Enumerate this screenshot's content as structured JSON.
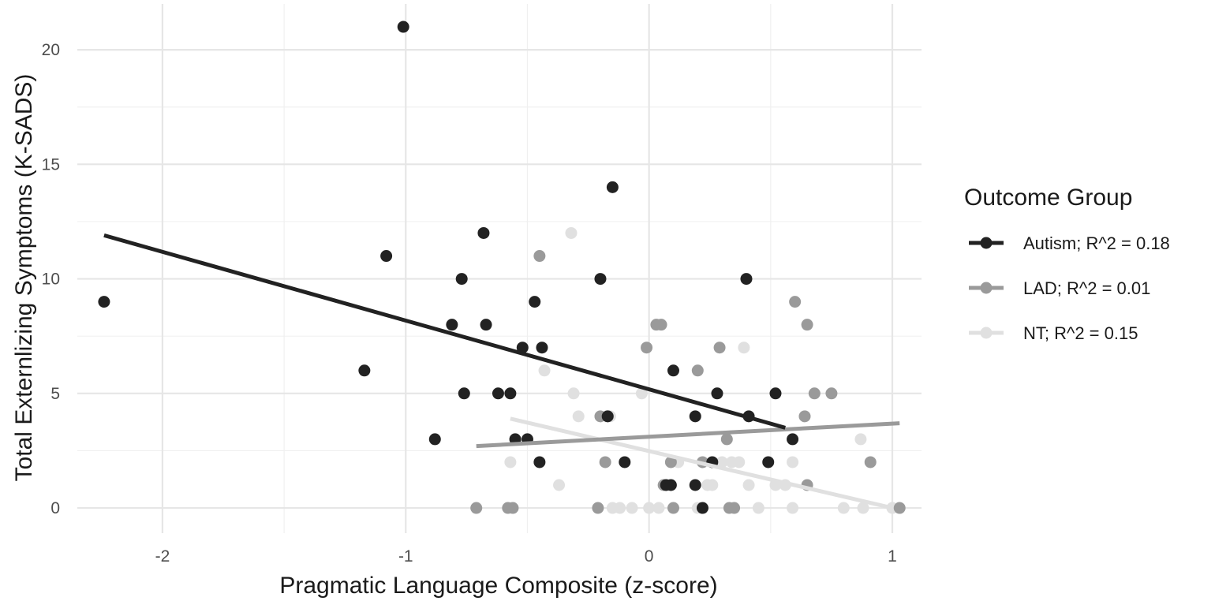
{
  "chart_data": {
    "type": "scatter",
    "title": "",
    "xlabel": "Pragmatic Language Composite (z-score)",
    "ylabel": "Total Externlizing Symptoms (K-SADS)",
    "xlim": [
      -2.35,
      1.12
    ],
    "ylim": [
      -1.1,
      22.0
    ],
    "x_ticks": [
      -2,
      -1,
      0,
      1
    ],
    "x_tick_labels": [
      "-2",
      "-1",
      "0",
      "1"
    ],
    "y_ticks": [
      0,
      5,
      10,
      15,
      20
    ],
    "y_tick_labels": [
      "0",
      "5",
      "10",
      "15",
      "20"
    ],
    "grid": true,
    "legend": {
      "title": "Outcome Group",
      "position": "right"
    },
    "series": [
      {
        "name": "Autism; R^2 = 0.18",
        "color": "#222222",
        "points": [
          [
            -2.24,
            9
          ],
          [
            -1.01,
            21
          ],
          [
            -1.08,
            11
          ],
          [
            -1.17,
            6
          ],
          [
            -0.88,
            3
          ],
          [
            -0.81,
            8
          ],
          [
            -0.77,
            10
          ],
          [
            -0.76,
            5
          ],
          [
            -0.68,
            12
          ],
          [
            -0.67,
            8
          ],
          [
            -0.62,
            5
          ],
          [
            -0.57,
            5
          ],
          [
            -0.55,
            3
          ],
          [
            -0.52,
            7
          ],
          [
            -0.5,
            3
          ],
          [
            -0.47,
            9
          ],
          [
            -0.44,
            7
          ],
          [
            -0.45,
            2
          ],
          [
            -0.2,
            10
          ],
          [
            -0.15,
            14
          ],
          [
            -0.17,
            4
          ],
          [
            -0.1,
            2
          ],
          [
            0.07,
            1
          ],
          [
            0.09,
            1
          ],
          [
            0.1,
            6
          ],
          [
            0.19,
            4
          ],
          [
            0.19,
            1
          ],
          [
            0.22,
            0
          ],
          [
            0.26,
            2
          ],
          [
            0.28,
            5
          ],
          [
            0.4,
            10
          ],
          [
            0.41,
            4
          ],
          [
            0.49,
            2
          ],
          [
            0.52,
            5
          ],
          [
            0.59,
            3
          ]
        ],
        "fit": [
          [
            -2.24,
            11.9
          ],
          [
            0.56,
            3.5
          ]
        ]
      },
      {
        "name": "LAD; R^2 = 0.01",
        "color": "#9a9a9a",
        "points": [
          [
            -0.71,
            0
          ],
          [
            -0.58,
            0
          ],
          [
            -0.56,
            0
          ],
          [
            -0.45,
            11
          ],
          [
            -0.2,
            4
          ],
          [
            -0.18,
            2
          ],
          [
            -0.21,
            0
          ],
          [
            -0.17,
            4
          ],
          [
            -0.01,
            7
          ],
          [
            0.03,
            8
          ],
          [
            0.05,
            8
          ],
          [
            0.06,
            1
          ],
          [
            0.09,
            2
          ],
          [
            0.1,
            0
          ],
          [
            0.2,
            6
          ],
          [
            0.22,
            2
          ],
          [
            0.29,
            7
          ],
          [
            0.32,
            3
          ],
          [
            0.33,
            0
          ],
          [
            0.35,
            0
          ],
          [
            0.6,
            9
          ],
          [
            0.65,
            8
          ],
          [
            0.64,
            4
          ],
          [
            0.65,
            1
          ],
          [
            0.68,
            5
          ],
          [
            0.75,
            5
          ],
          [
            0.91,
            2
          ],
          [
            1.03,
            0
          ]
        ],
        "fit": [
          [
            -0.71,
            2.7
          ],
          [
            1.03,
            3.7
          ]
        ]
      },
      {
        "name": "NT; R^2 = 0.15",
        "color": "#e0e0e0",
        "points": [
          [
            -0.32,
            12
          ],
          [
            -0.43,
            6
          ],
          [
            -0.31,
            5
          ],
          [
            -0.29,
            4
          ],
          [
            -0.16,
            4
          ],
          [
            -0.57,
            2
          ],
          [
            -0.37,
            1
          ],
          [
            -0.15,
            0
          ],
          [
            -0.12,
            0
          ],
          [
            -0.07,
            0
          ],
          [
            -0.03,
            5
          ],
          [
            0.0,
            0
          ],
          [
            0.04,
            0
          ],
          [
            0.12,
            2
          ],
          [
            0.2,
            0
          ],
          [
            0.24,
            1
          ],
          [
            0.26,
            1
          ],
          [
            0.3,
            2
          ],
          [
            0.34,
            2
          ],
          [
            0.37,
            2
          ],
          [
            0.39,
            7
          ],
          [
            0.41,
            1
          ],
          [
            0.45,
            0
          ],
          [
            0.52,
            1
          ],
          [
            0.56,
            1
          ],
          [
            0.59,
            2
          ],
          [
            0.59,
            0
          ],
          [
            0.8,
            0
          ],
          [
            0.87,
            3
          ],
          [
            0.88,
            0
          ],
          [
            1.0,
            0
          ]
        ],
        "fit": [
          [
            -0.57,
            3.9
          ],
          [
            1.0,
            0.0
          ]
        ]
      }
    ]
  }
}
